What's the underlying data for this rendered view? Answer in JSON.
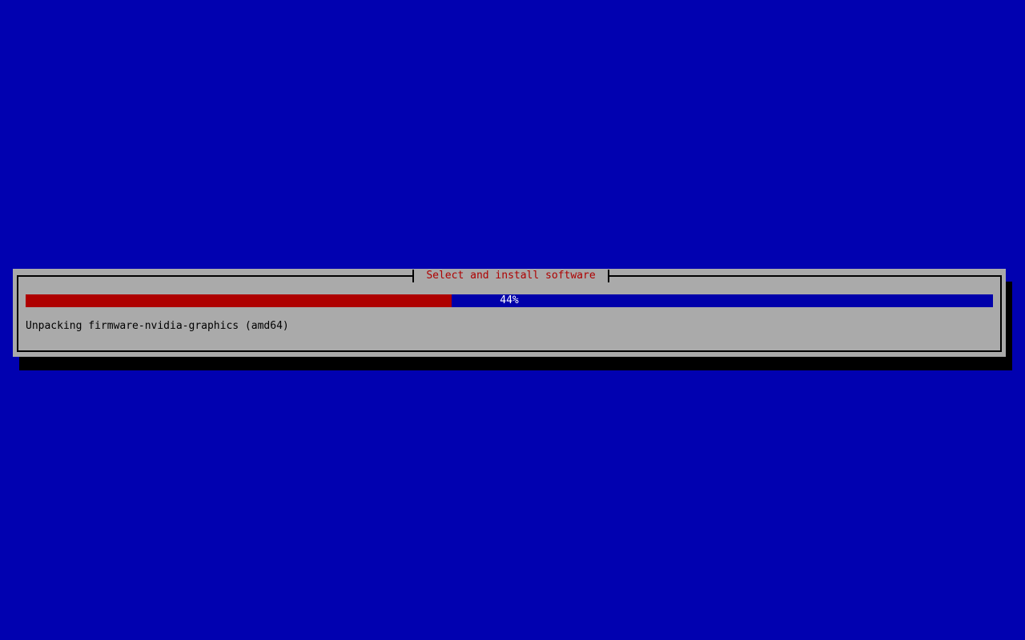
{
  "dialog": {
    "title": "Select and install software",
    "progress": {
      "percent": 44,
      "percent_label": "44%"
    },
    "status_text": "Unpacking firmware-nvidia-graphics (amd64)"
  },
  "colors": {
    "desktop_background": "#0101B0",
    "dialog_background": "#AAAAAA",
    "border": "#000000",
    "shadow": "#000000",
    "title_text": "#AE0000",
    "progress_fill": "#AE0000",
    "progress_track": "#0000AA",
    "progress_label_text": "#FFFFFF",
    "status_text": "#000000"
  }
}
